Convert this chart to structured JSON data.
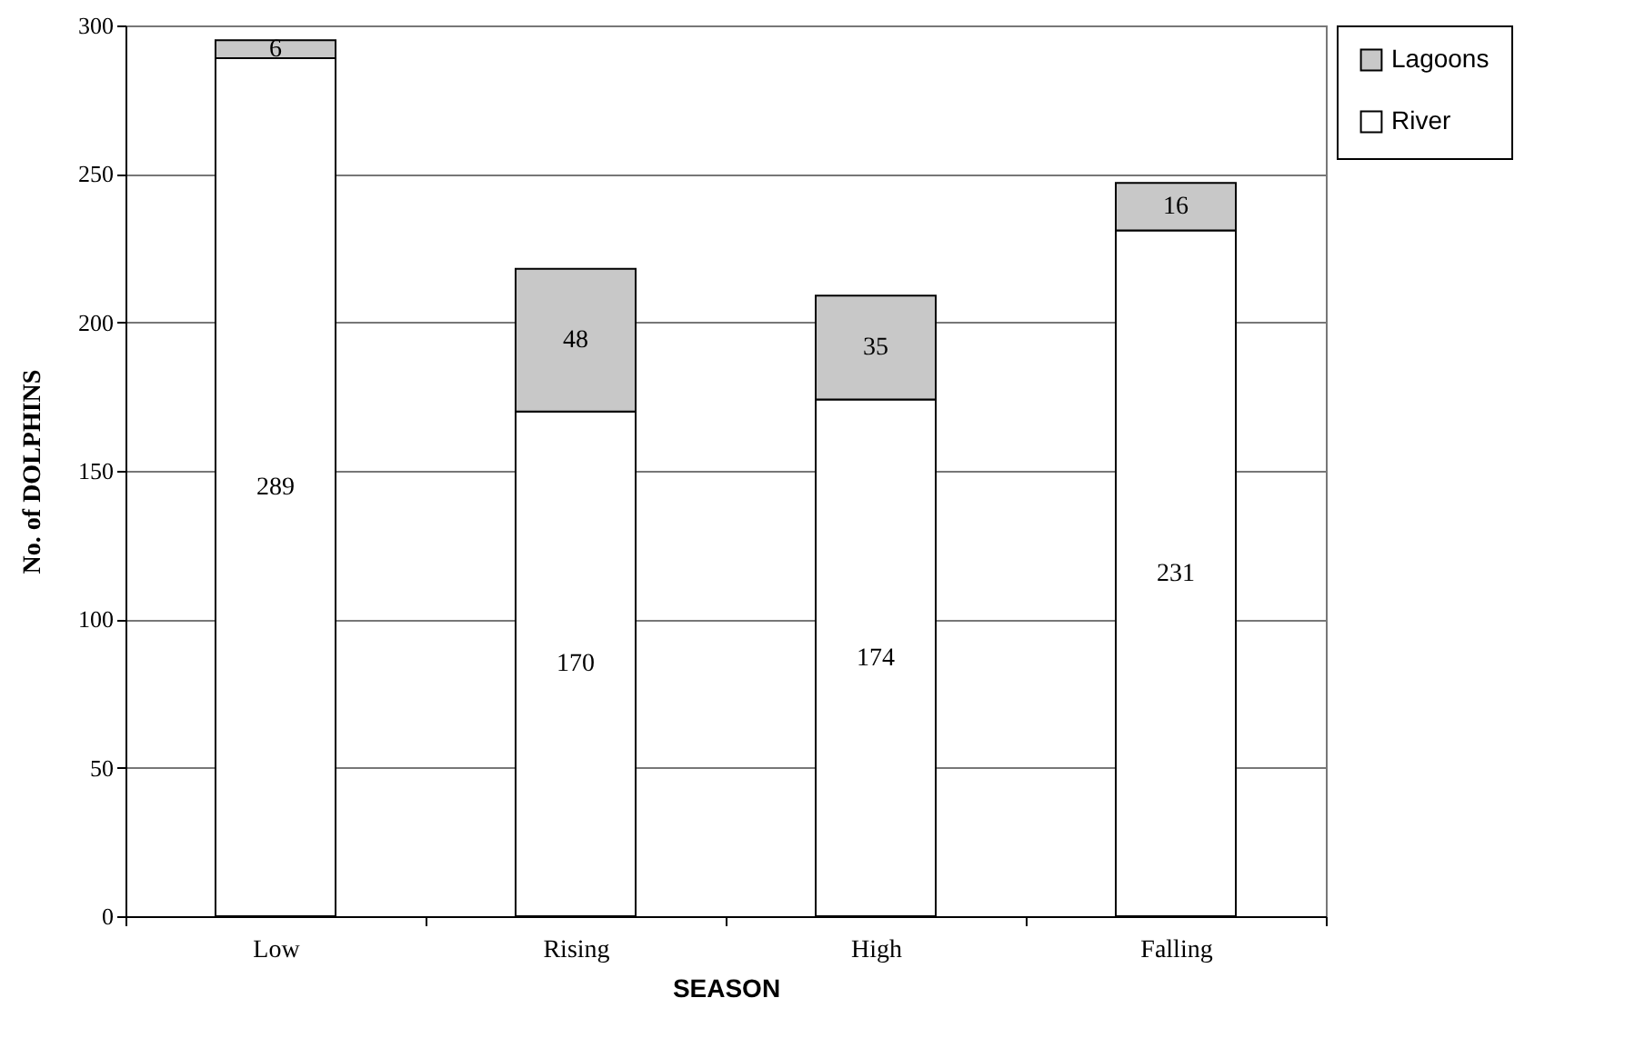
{
  "chart_data": {
    "type": "bar",
    "stacked": true,
    "xlabel": "SEASON",
    "ylabel": "No. of DOLPHINS",
    "categories": [
      "Low",
      "Rising",
      "High",
      "Falling"
    ],
    "series": [
      {
        "name": "River",
        "color": "#ffffff",
        "values": [
          289,
          170,
          174,
          231
        ]
      },
      {
        "name": "Lagoons",
        "color": "#c8c8c8",
        "values": [
          6,
          48,
          35,
          16
        ]
      }
    ],
    "ylim": [
      0,
      300
    ],
    "yticks": [
      0,
      50,
      100,
      150,
      200,
      250,
      300
    ],
    "grid": "y",
    "legend": "right",
    "data_labels": true
  }
}
